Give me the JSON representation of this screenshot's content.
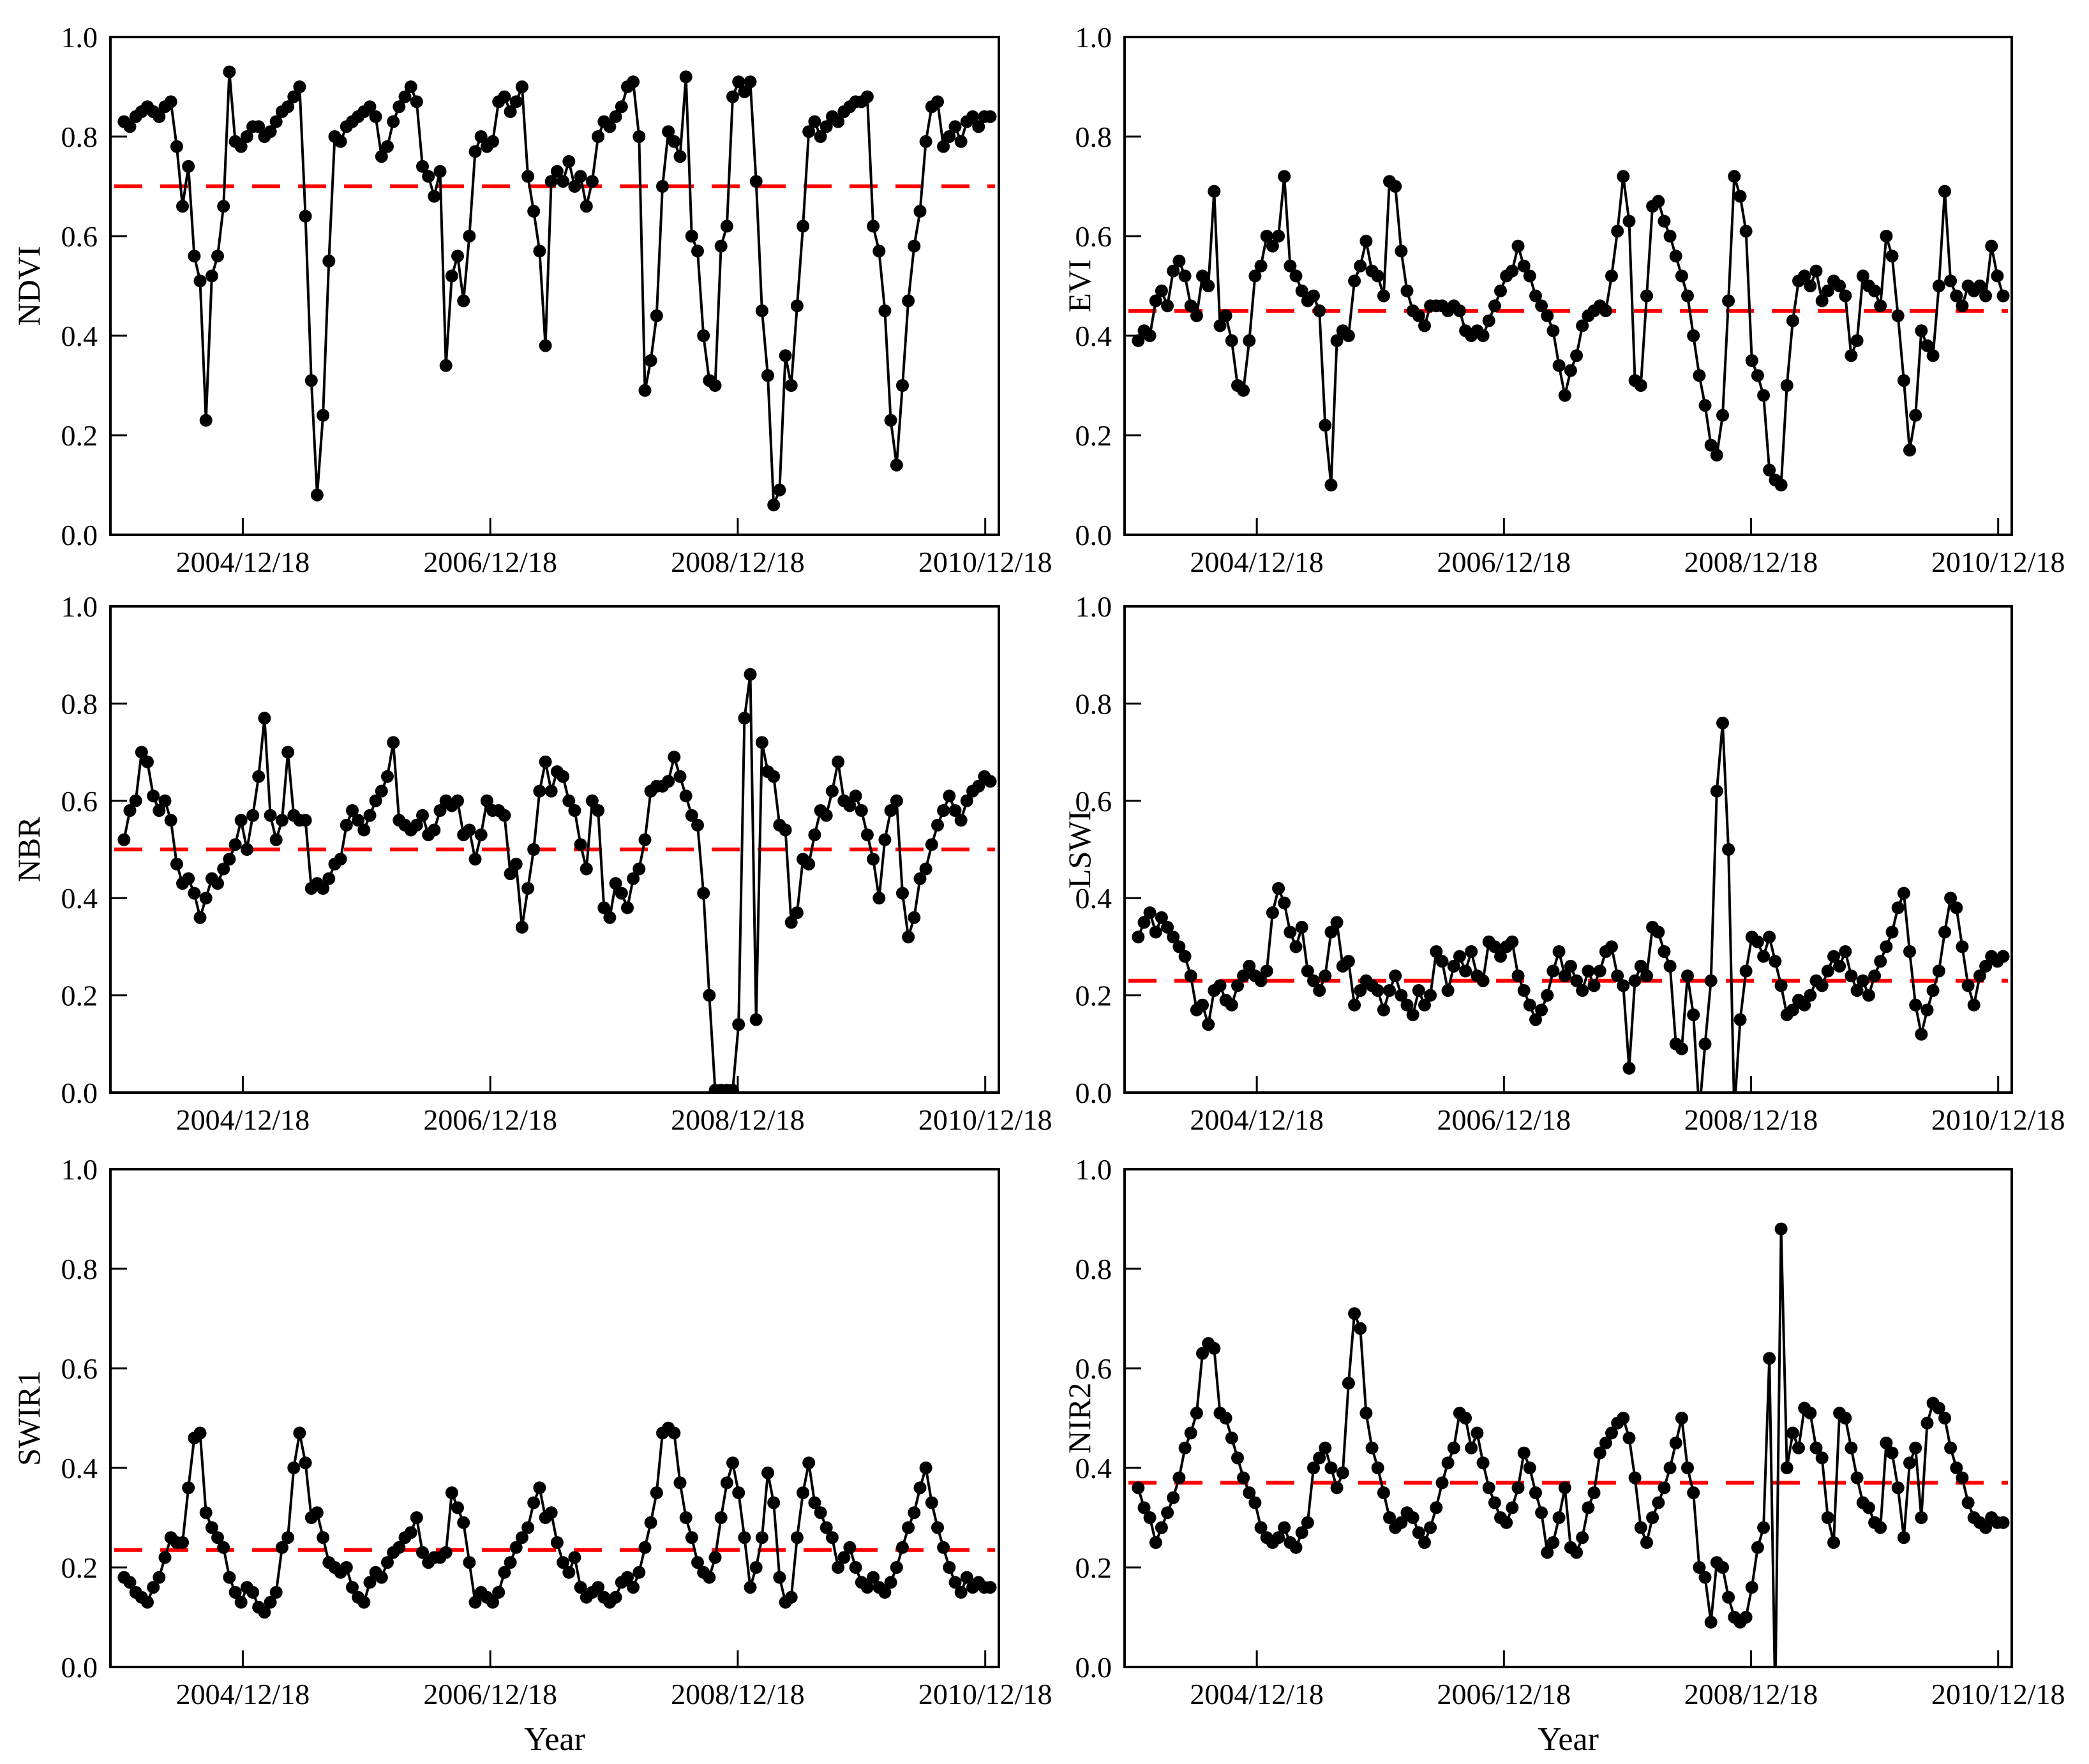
{
  "figure_title": "",
  "axes": {
    "x_label": "Year",
    "x_ticks": [
      {
        "label": "2004/12/18",
        "value": 2004.96
      },
      {
        "label": "2006/12/18",
        "value": 2006.96
      },
      {
        "label": "2008/12/18",
        "value": 2008.96
      },
      {
        "label": "2010/12/18",
        "value": 2010.96
      }
    ],
    "y_ticks": [
      {
        "label": "0.0",
        "value": 0.0
      },
      {
        "label": "0.2",
        "value": 0.2
      },
      {
        "label": "0.4",
        "value": 0.4
      },
      {
        "label": "0.6",
        "value": 0.6
      },
      {
        "label": "0.8",
        "value": 0.8
      },
      {
        "label": "1.0",
        "value": 1.0
      }
    ],
    "x_range": [
      2003.89,
      2011.07
    ],
    "y_range": [
      0,
      1
    ],
    "grid": false,
    "legend": "none"
  },
  "colors": {
    "series": "#000000",
    "threshold": "#ff0000",
    "axis": "#000000",
    "background": "#ffffff"
  },
  "chart_data": [
    {
      "id": "ndvi",
      "type": "line",
      "ylabel": "NDVI",
      "threshold": 0.7,
      "x_start": 2004.0,
      "x_step": 0.0473,
      "values": [
        0.83,
        0.82,
        0.84,
        0.85,
        0.86,
        0.85,
        0.84,
        0.86,
        0.87,
        0.78,
        0.66,
        0.74,
        0.56,
        0.51,
        0.23,
        0.52,
        0.56,
        0.66,
        0.93,
        0.79,
        0.78,
        0.8,
        0.82,
        0.82,
        0.8,
        0.81,
        0.83,
        0.85,
        0.86,
        0.88,
        0.9,
        0.64,
        0.31,
        0.08,
        0.24,
        0.55,
        0.8,
        0.79,
        0.82,
        0.83,
        0.84,
        0.85,
        0.86,
        0.84,
        0.76,
        0.78,
        0.83,
        0.86,
        0.88,
        0.9,
        0.87,
        0.74,
        0.72,
        0.68,
        0.73,
        0.34,
        0.52,
        0.56,
        0.47,
        0.6,
        0.77,
        0.8,
        0.78,
        0.79,
        0.87,
        0.88,
        0.85,
        0.87,
        0.9,
        0.72,
        0.65,
        0.57,
        0.38,
        0.71,
        0.73,
        0.71,
        0.75,
        0.7,
        0.72,
        0.66,
        0.71,
        0.8,
        0.83,
        0.82,
        0.84,
        0.86,
        0.9,
        0.91,
        0.8,
        0.29,
        0.35,
        0.44,
        0.7,
        0.81,
        0.79,
        0.76,
        0.92,
        0.6,
        0.57,
        0.4,
        0.31,
        0.3,
        0.58,
        0.62,
        0.88,
        0.91,
        0.89,
        0.91,
        0.71,
        0.45,
        0.32,
        0.06,
        0.09,
        0.36,
        0.3,
        0.46,
        0.62,
        0.81,
        0.83,
        0.8,
        0.82,
        0.84,
        0.83,
        0.85,
        0.86,
        0.87,
        0.87,
        0.88,
        0.62,
        0.57,
        0.45,
        0.23,
        0.14,
        0.3,
        0.47,
        0.58,
        0.65,
        0.79,
        0.86,
        0.87,
        0.78,
        0.8,
        0.82,
        0.79,
        0.83,
        0.84,
        0.82,
        0.84,
        0.84
      ]
    },
    {
      "id": "evi",
      "type": "line",
      "ylabel": "EVI",
      "threshold": 0.45,
      "x_start": 2004.0,
      "x_step": 0.0473,
      "values": [
        0.39,
        0.41,
        0.4,
        0.47,
        0.49,
        0.46,
        0.53,
        0.55,
        0.52,
        0.46,
        0.44,
        0.52,
        0.5,
        0.69,
        0.42,
        0.44,
        0.39,
        0.3,
        0.29,
        0.39,
        0.52,
        0.54,
        0.6,
        0.58,
        0.6,
        0.72,
        0.54,
        0.52,
        0.49,
        0.47,
        0.48,
        0.45,
        0.22,
        0.1,
        0.39,
        0.41,
        0.4,
        0.51,
        0.54,
        0.59,
        0.53,
        0.52,
        0.48,
        0.71,
        0.7,
        0.57,
        0.49,
        0.45,
        0.44,
        0.42,
        0.46,
        0.46,
        0.46,
        0.45,
        0.46,
        0.45,
        0.41,
        0.4,
        0.41,
        0.4,
        0.43,
        0.46,
        0.49,
        0.52,
        0.53,
        0.58,
        0.54,
        0.52,
        0.48,
        0.46,
        0.44,
        0.41,
        0.34,
        0.28,
        0.33,
        0.36,
        0.42,
        0.44,
        0.45,
        0.46,
        0.45,
        0.52,
        0.61,
        0.72,
        0.63,
        0.31,
        0.3,
        0.48,
        0.66,
        0.67,
        0.63,
        0.6,
        0.56,
        0.52,
        0.48,
        0.4,
        0.32,
        0.26,
        0.18,
        0.16,
        0.24,
        0.47,
        0.72,
        0.68,
        0.61,
        0.35,
        0.32,
        0.28,
        0.13,
        0.11,
        0.1,
        0.3,
        0.43,
        0.51,
        0.52,
        0.5,
        0.53,
        0.47,
        0.49,
        0.51,
        0.5,
        0.48,
        0.36,
        0.39,
        0.52,
        0.5,
        0.49,
        0.46,
        0.6,
        0.56,
        0.44,
        0.31,
        0.17,
        0.24,
        0.41,
        0.38,
        0.36,
        0.5,
        0.69,
        0.51,
        0.48,
        0.46,
        0.5,
        0.49,
        0.5,
        0.48,
        0.58,
        0.52,
        0.48
      ]
    },
    {
      "id": "nbr",
      "type": "line",
      "ylabel": "NBR",
      "threshold": 0.5,
      "x_start": 2004.0,
      "x_step": 0.0473,
      "values": [
        0.52,
        0.58,
        0.6,
        0.7,
        0.68,
        0.61,
        0.58,
        0.6,
        0.56,
        0.47,
        0.43,
        0.44,
        0.41,
        0.36,
        0.4,
        0.44,
        0.43,
        0.46,
        0.48,
        0.51,
        0.56,
        0.5,
        0.57,
        0.65,
        0.77,
        0.57,
        0.52,
        0.56,
        0.7,
        0.57,
        0.56,
        0.56,
        0.42,
        0.43,
        0.42,
        0.44,
        0.47,
        0.48,
        0.55,
        0.58,
        0.56,
        0.54,
        0.57,
        0.6,
        0.62,
        0.65,
        0.72,
        0.56,
        0.55,
        0.54,
        0.55,
        0.57,
        0.53,
        0.54,
        0.58,
        0.6,
        0.59,
        0.6,
        0.53,
        0.54,
        0.48,
        0.53,
        0.6,
        0.58,
        0.58,
        0.57,
        0.45,
        0.47,
        0.34,
        0.42,
        0.5,
        0.62,
        0.68,
        0.62,
        0.66,
        0.65,
        0.6,
        0.58,
        0.51,
        0.46,
        0.6,
        0.58,
        0.38,
        0.36,
        0.43,
        0.41,
        0.38,
        0.44,
        0.46,
        0.52,
        0.62,
        0.63,
        0.63,
        0.64,
        0.69,
        0.65,
        0.61,
        0.57,
        0.55,
        0.41,
        0.2,
        0.005,
        0.005,
        0.005,
        0.005,
        0.14,
        0.77,
        0.86,
        0.15,
        0.72,
        0.66,
        0.65,
        0.55,
        0.54,
        0.35,
        0.37,
        0.48,
        0.47,
        0.53,
        0.58,
        0.57,
        0.62,
        0.68,
        0.6,
        0.59,
        0.61,
        0.58,
        0.53,
        0.48,
        0.4,
        0.52,
        0.58,
        0.6,
        0.41,
        0.32,
        0.36,
        0.44,
        0.46,
        0.51,
        0.55,
        0.58,
        0.61,
        0.58,
        0.56,
        0.6,
        0.62,
        0.63,
        0.65,
        0.64
      ]
    },
    {
      "id": "lswi",
      "type": "line",
      "ylabel": "LSWI",
      "threshold": 0.23,
      "x_start": 2004.0,
      "x_step": 0.0473,
      "values": [
        0.32,
        0.35,
        0.37,
        0.33,
        0.36,
        0.34,
        0.32,
        0.3,
        0.28,
        0.24,
        0.17,
        0.18,
        0.14,
        0.21,
        0.22,
        0.19,
        0.18,
        0.22,
        0.24,
        0.26,
        0.24,
        0.23,
        0.25,
        0.37,
        0.42,
        0.39,
        0.33,
        0.3,
        0.34,
        0.25,
        0.23,
        0.21,
        0.24,
        0.33,
        0.35,
        0.26,
        0.27,
        0.18,
        0.21,
        0.23,
        0.22,
        0.21,
        0.17,
        0.21,
        0.24,
        0.2,
        0.18,
        0.16,
        0.21,
        0.18,
        0.2,
        0.29,
        0.27,
        0.21,
        0.26,
        0.28,
        0.25,
        0.29,
        0.24,
        0.23,
        0.31,
        0.3,
        0.28,
        0.3,
        0.31,
        0.24,
        0.21,
        0.18,
        0.15,
        0.17,
        0.2,
        0.25,
        0.29,
        0.24,
        0.26,
        0.23,
        0.21,
        0.25,
        0.22,
        0.25,
        0.29,
        0.3,
        0.24,
        0.22,
        0.05,
        0.23,
        0.26,
        0.24,
        0.34,
        0.33,
        0.29,
        0.26,
        0.1,
        0.09,
        0.24,
        0.16,
        -0.04,
        0.1,
        0.23,
        0.62,
        0.76,
        0.5,
        -0.04,
        0.15,
        0.25,
        0.32,
        0.31,
        0.28,
        0.32,
        0.27,
        0.22,
        0.16,
        0.17,
        0.19,
        0.18,
        0.2,
        0.23,
        0.22,
        0.25,
        0.28,
        0.26,
        0.29,
        0.24,
        0.21,
        0.23,
        0.2,
        0.24,
        0.27,
        0.3,
        0.33,
        0.38,
        0.41,
        0.29,
        0.18,
        0.12,
        0.17,
        0.21,
        0.25,
        0.33,
        0.4,
        0.38,
        0.3,
        0.22,
        0.18,
        0.24,
        0.26,
        0.28,
        0.27,
        0.28
      ]
    },
    {
      "id": "swir1",
      "type": "line",
      "ylabel": "SWIR1",
      "threshold": 0.235,
      "x_start": 2004.0,
      "x_step": 0.0473,
      "values": [
        0.18,
        0.17,
        0.15,
        0.14,
        0.13,
        0.16,
        0.18,
        0.22,
        0.26,
        0.25,
        0.25,
        0.36,
        0.46,
        0.47,
        0.31,
        0.28,
        0.26,
        0.24,
        0.18,
        0.15,
        0.13,
        0.16,
        0.15,
        0.12,
        0.11,
        0.13,
        0.15,
        0.24,
        0.26,
        0.4,
        0.47,
        0.41,
        0.3,
        0.31,
        0.26,
        0.21,
        0.2,
        0.19,
        0.2,
        0.16,
        0.14,
        0.13,
        0.17,
        0.19,
        0.18,
        0.21,
        0.23,
        0.24,
        0.26,
        0.27,
        0.3,
        0.23,
        0.21,
        0.22,
        0.22,
        0.23,
        0.35,
        0.32,
        0.29,
        0.21,
        0.13,
        0.15,
        0.14,
        0.13,
        0.15,
        0.19,
        0.21,
        0.24,
        0.26,
        0.28,
        0.33,
        0.36,
        0.3,
        0.31,
        0.25,
        0.21,
        0.19,
        0.22,
        0.16,
        0.14,
        0.15,
        0.16,
        0.14,
        0.13,
        0.14,
        0.17,
        0.18,
        0.16,
        0.19,
        0.24,
        0.29,
        0.35,
        0.47,
        0.48,
        0.47,
        0.37,
        0.3,
        0.26,
        0.21,
        0.19,
        0.18,
        0.22,
        0.3,
        0.37,
        0.41,
        0.35,
        0.26,
        0.16,
        0.2,
        0.26,
        0.39,
        0.33,
        0.18,
        0.13,
        0.14,
        0.26,
        0.35,
        0.41,
        0.33,
        0.31,
        0.28,
        0.26,
        0.2,
        0.22,
        0.24,
        0.2,
        0.17,
        0.16,
        0.18,
        0.16,
        0.15,
        0.17,
        0.2,
        0.24,
        0.28,
        0.31,
        0.36,
        0.4,
        0.33,
        0.28,
        0.24,
        0.2,
        0.17,
        0.15,
        0.18,
        0.16,
        0.17,
        0.16,
        0.16
      ]
    },
    {
      "id": "nir2",
      "type": "line",
      "ylabel": "NIR2",
      "threshold": 0.37,
      "x_start": 2004.0,
      "x_step": 0.0473,
      "values": [
        0.36,
        0.32,
        0.3,
        0.25,
        0.28,
        0.31,
        0.34,
        0.38,
        0.44,
        0.47,
        0.51,
        0.63,
        0.65,
        0.64,
        0.51,
        0.5,
        0.46,
        0.42,
        0.38,
        0.35,
        0.33,
        0.28,
        0.26,
        0.25,
        0.26,
        0.28,
        0.25,
        0.24,
        0.27,
        0.29,
        0.4,
        0.42,
        0.44,
        0.4,
        0.36,
        0.39,
        0.57,
        0.71,
        0.68,
        0.51,
        0.44,
        0.4,
        0.35,
        0.3,
        0.28,
        0.29,
        0.31,
        0.3,
        0.27,
        0.25,
        0.28,
        0.32,
        0.37,
        0.41,
        0.44,
        0.51,
        0.5,
        0.44,
        0.47,
        0.41,
        0.36,
        0.33,
        0.3,
        0.29,
        0.32,
        0.36,
        0.43,
        0.4,
        0.35,
        0.31,
        0.23,
        0.25,
        0.3,
        0.36,
        0.24,
        0.23,
        0.26,
        0.32,
        0.35,
        0.43,
        0.45,
        0.47,
        0.49,
        0.5,
        0.46,
        0.38,
        0.28,
        0.25,
        0.3,
        0.33,
        0.36,
        0.4,
        0.45,
        0.5,
        0.4,
        0.35,
        0.2,
        0.18,
        0.09,
        0.21,
        0.2,
        0.14,
        0.1,
        0.09,
        0.1,
        0.16,
        0.24,
        0.28,
        0.62,
        -0.06,
        0.88,
        0.4,
        0.47,
        0.44,
        0.52,
        0.51,
        0.44,
        0.42,
        0.3,
        0.25,
        0.51,
        0.5,
        0.44,
        0.38,
        0.33,
        0.32,
        0.29,
        0.28,
        0.45,
        0.43,
        0.36,
        0.26,
        0.41,
        0.44,
        0.3,
        0.49,
        0.53,
        0.52,
        0.5,
        0.44,
        0.4,
        0.38,
        0.33,
        0.3,
        0.29,
        0.28,
        0.3,
        0.29,
        0.29
      ]
    }
  ]
}
